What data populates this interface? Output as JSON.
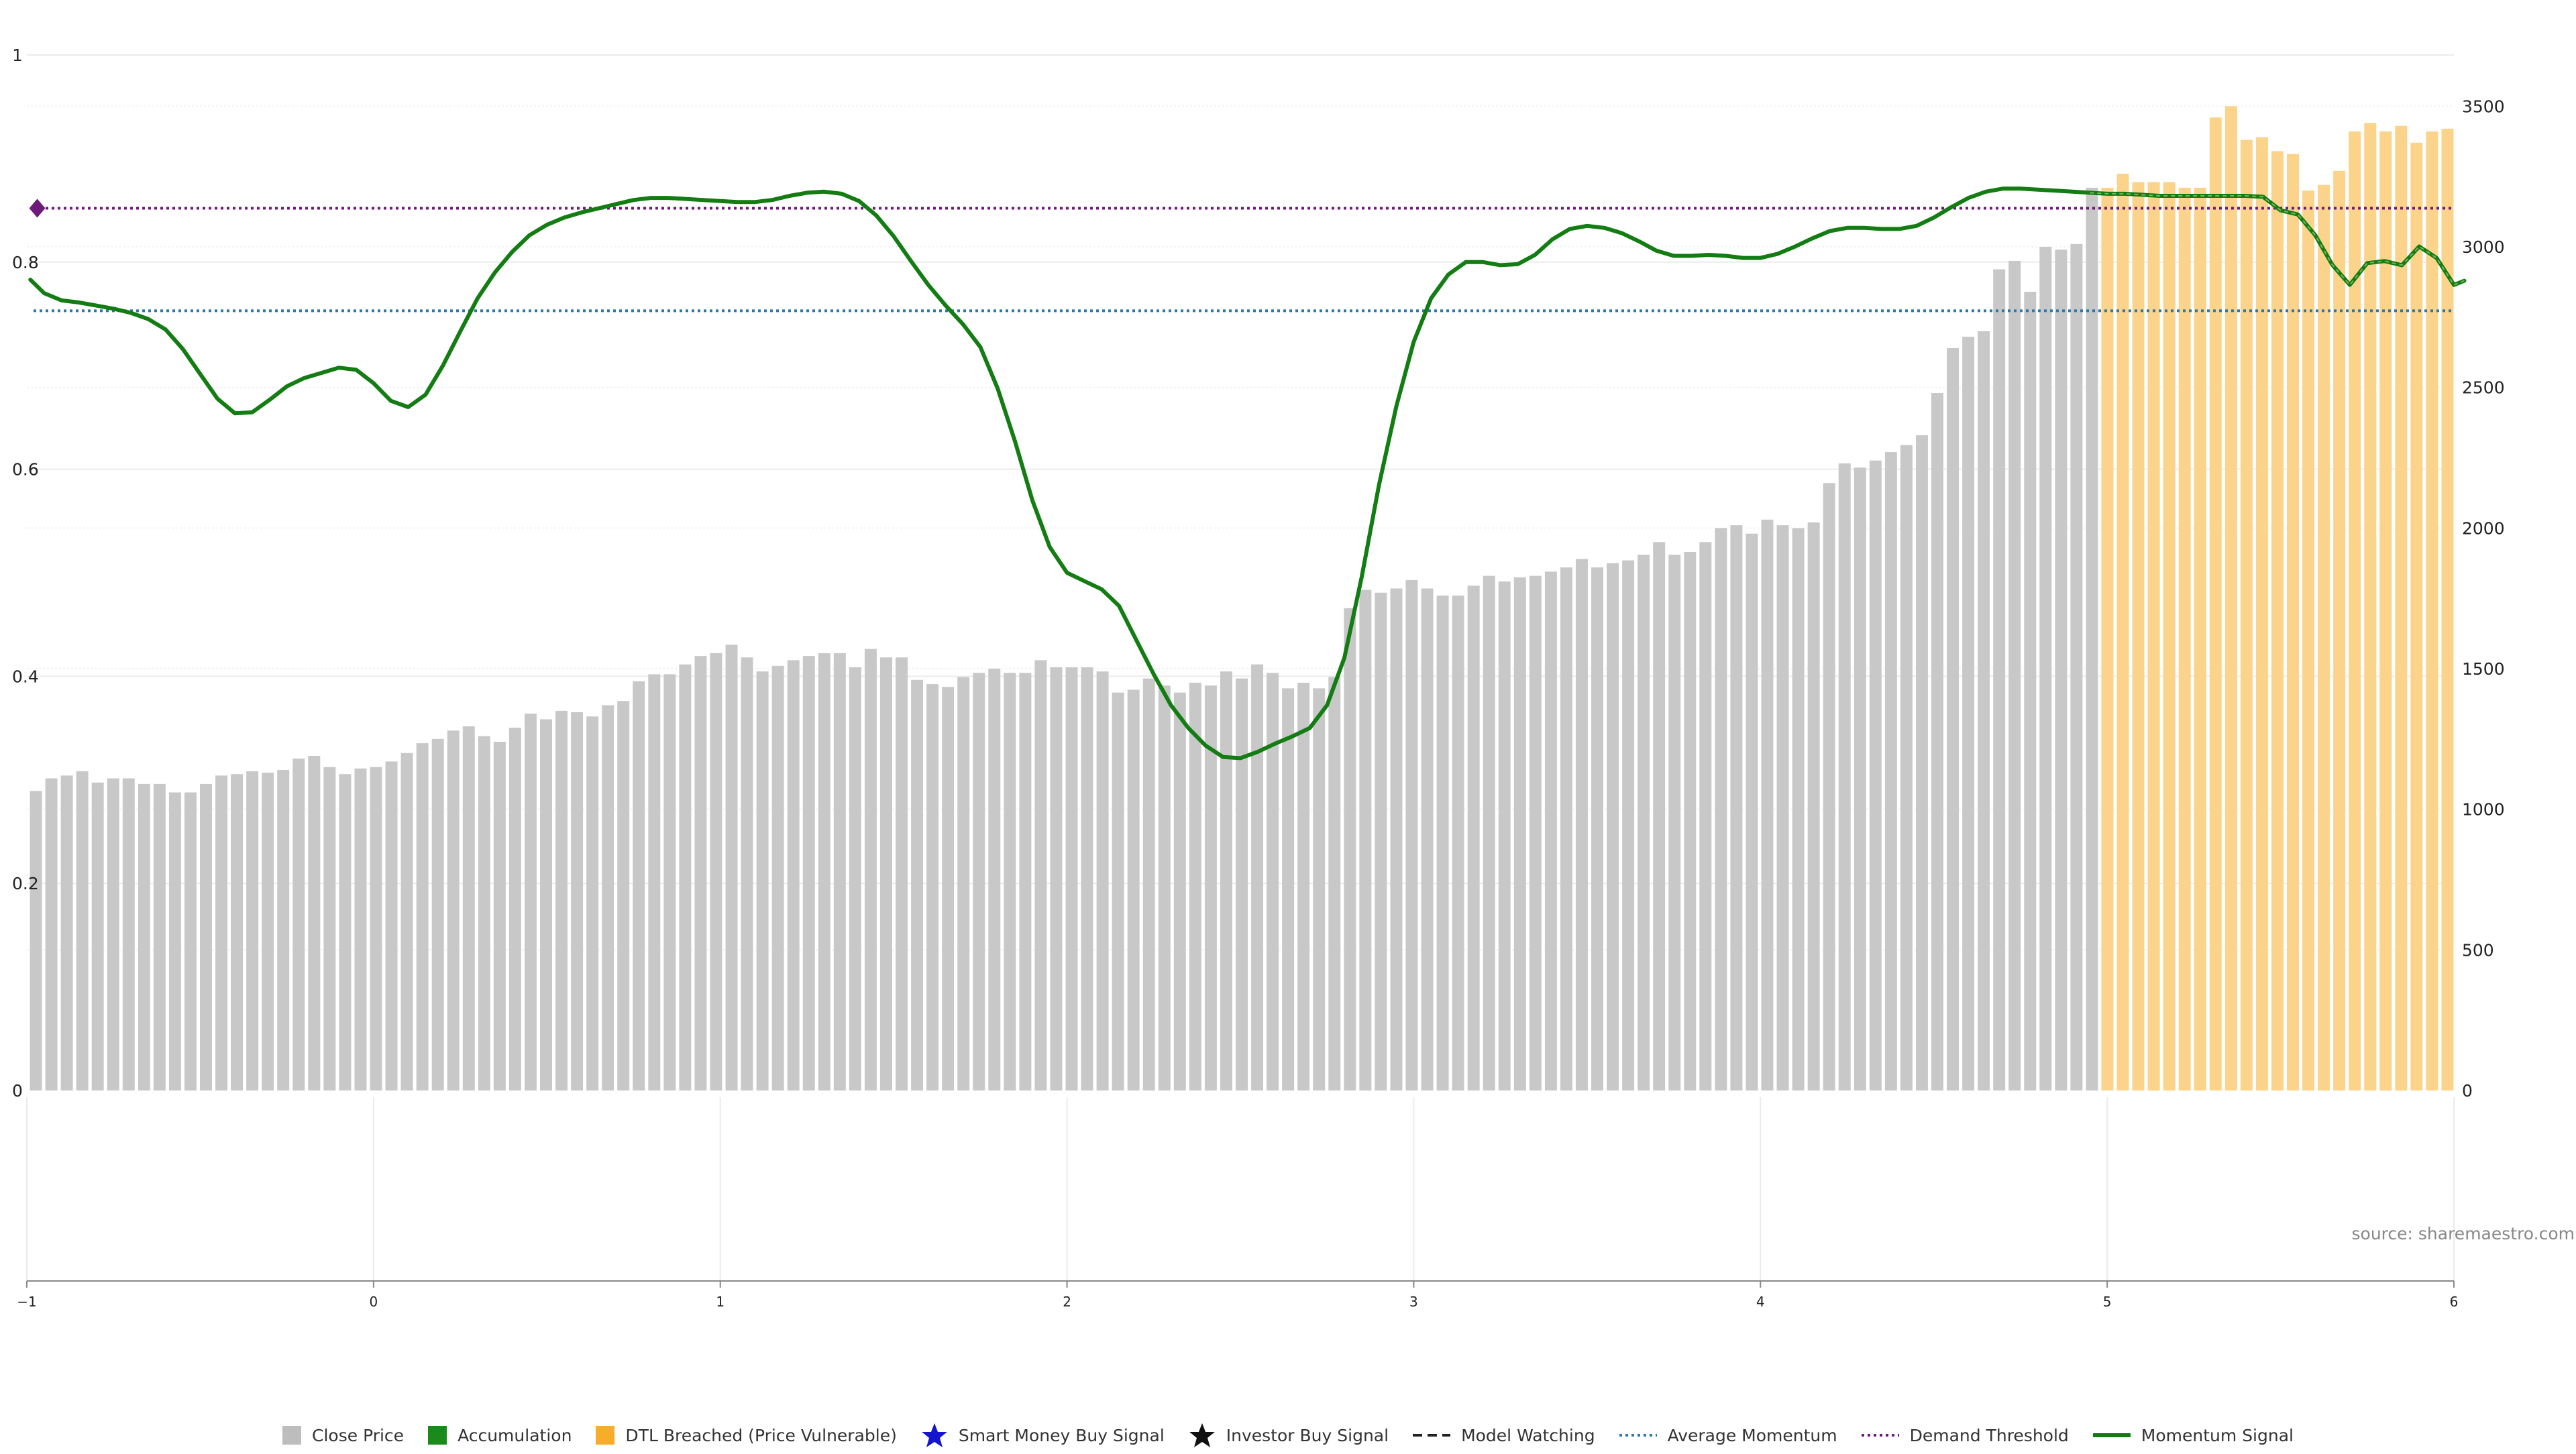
{
  "chart_data": {
    "type": "bar+line",
    "source_label": "source: sharemaestro.com",
    "left_axis": {
      "ticks": [
        0,
        0.2,
        0.4,
        0.6,
        0.8,
        1
      ],
      "tick_labels": [
        "0",
        "0.2",
        "0.4",
        "0.6",
        "0.8",
        "1"
      ],
      "ylim": [
        0,
        1
      ]
    },
    "right_axis": {
      "ticks": [
        0,
        500,
        1000,
        1500,
        2000,
        2500,
        3000,
        3500
      ],
      "tick_labels": [
        "0",
        "500",
        "1000",
        "1500",
        "2000",
        "2500",
        "3000",
        "3500"
      ],
      "ylim": [
        0,
        3682
      ]
    },
    "x_axis": {
      "ticks": [
        -1,
        0,
        1,
        2,
        3,
        4,
        5,
        6
      ],
      "tick_labels": [
        "−1",
        "0",
        "1",
        "2",
        "3",
        "4",
        "5",
        "6"
      ],
      "xlim": [
        -1,
        6
      ]
    },
    "grid": true,
    "legend_position": "bottom",
    "colors": {
      "close_price": "#c8c8c8",
      "accumulation": "#1a8a1a",
      "dtl_breached": "#fbd38a",
      "momentum": "#137d13",
      "average_momentum": "#2a7aa8",
      "demand_threshold": "#6d1a7a",
      "grid": "#ebebeb"
    },
    "average_momentum": 0.753,
    "demand_threshold": 0.852,
    "close_price": [
      1065,
      1110,
      1120,
      1135,
      1095,
      1110,
      1110,
      1090,
      1090,
      1060,
      1060,
      1090,
      1120,
      1125,
      1135,
      1130,
      1140,
      1180,
      1190,
      1150,
      1125,
      1145,
      1150,
      1170,
      1200,
      1235,
      1250,
      1280,
      1295,
      1260,
      1240,
      1290,
      1340,
      1320,
      1350,
      1345,
      1330,
      1370,
      1385,
      1455,
      1480,
      1480,
      1515,
      1545,
      1555,
      1585,
      1540,
      1490,
      1510,
      1530,
      1545,
      1555,
      1555,
      1505,
      1570,
      1540,
      1540,
      1460,
      1445,
      1435,
      1470,
      1485,
      1500,
      1485,
      1485,
      1530,
      1505,
      1505,
      1505,
      1490,
      1415,
      1425,
      1465,
      1440,
      1415,
      1450,
      1440,
      1490,
      1465,
      1515,
      1485,
      1430,
      1450,
      1430,
      1470,
      1715,
      1780,
      1770,
      1785,
      1815,
      1785,
      1760,
      1760,
      1795,
      1830,
      1810,
      1825,
      1830,
      1845,
      1860,
      1890,
      1860,
      1875,
      1885,
      1905,
      1950,
      1905,
      1915,
      1950,
      2000,
      2010,
      1980,
      2030,
      2010,
      2000,
      2020,
      2160,
      2230,
      2215,
      2240,
      2270,
      2295,
      2330,
      2480,
      2640,
      2680,
      2700,
      2920,
      2950,
      2840,
      3000,
      2990,
      3010,
      3210,
      3210,
      3260,
      3230,
      3230,
      3230,
      3210,
      3210,
      3460,
      3500,
      3380,
      3390,
      3340,
      3330,
      3200,
      3220,
      3270,
      3410,
      3440,
      3410,
      3430,
      3370,
      3410,
      3420
    ],
    "dtl_breached_from_index": 134,
    "momentum_signal": [
      [
        -0.99,
        0.783
      ],
      [
        -0.95,
        0.77
      ],
      [
        -0.9,
        0.763
      ],
      [
        -0.85,
        0.761
      ],
      [
        -0.8,
        0.758
      ],
      [
        -0.75,
        0.755
      ],
      [
        -0.7,
        0.751
      ],
      [
        -0.65,
        0.745
      ],
      [
        -0.6,
        0.735
      ],
      [
        -0.55,
        0.716
      ],
      [
        -0.5,
        0.692
      ],
      [
        -0.45,
        0.668
      ],
      [
        -0.4,
        0.654
      ],
      [
        -0.35,
        0.655
      ],
      [
        -0.3,
        0.667
      ],
      [
        -0.25,
        0.68
      ],
      [
        -0.2,
        0.688
      ],
      [
        -0.15,
        0.693
      ],
      [
        -0.1,
        0.698
      ],
      [
        -0.05,
        0.696
      ],
      [
        0,
        0.683
      ],
      [
        0.05,
        0.666
      ],
      [
        0.1,
        0.66
      ],
      [
        0.15,
        0.672
      ],
      [
        0.2,
        0.7
      ],
      [
        0.25,
        0.733
      ],
      [
        0.3,
        0.765
      ],
      [
        0.35,
        0.79
      ],
      [
        0.4,
        0.81
      ],
      [
        0.45,
        0.826
      ],
      [
        0.5,
        0.836
      ],
      [
        0.55,
        0.843
      ],
      [
        0.6,
        0.848
      ],
      [
        0.65,
        0.852
      ],
      [
        0.7,
        0.856
      ],
      [
        0.75,
        0.86
      ],
      [
        0.8,
        0.862
      ],
      [
        0.85,
        0.862
      ],
      [
        0.9,
        0.861
      ],
      [
        0.95,
        0.86
      ],
      [
        1.0,
        0.859
      ],
      [
        1.05,
        0.858
      ],
      [
        1.1,
        0.858
      ],
      [
        1.15,
        0.86
      ],
      [
        1.2,
        0.864
      ],
      [
        1.25,
        0.867
      ],
      [
        1.3,
        0.868
      ],
      [
        1.35,
        0.866
      ],
      [
        1.4,
        0.859
      ],
      [
        1.45,
        0.845
      ],
      [
        1.5,
        0.825
      ],
      [
        1.55,
        0.801
      ],
      [
        1.6,
        0.778
      ],
      [
        1.65,
        0.758
      ],
      [
        1.7,
        0.74
      ],
      [
        1.75,
        0.718
      ],
      [
        1.8,
        0.678
      ],
      [
        1.85,
        0.627
      ],
      [
        1.9,
        0.57
      ],
      [
        1.95,
        0.525
      ],
      [
        2.0,
        0.5
      ],
      [
        2.05,
        0.492
      ],
      [
        2.1,
        0.484
      ],
      [
        2.15,
        0.468
      ],
      [
        2.2,
        0.435
      ],
      [
        2.25,
        0.402
      ],
      [
        2.3,
        0.372
      ],
      [
        2.35,
        0.35
      ],
      [
        2.4,
        0.333
      ],
      [
        2.45,
        0.322
      ],
      [
        2.5,
        0.321
      ],
      [
        2.55,
        0.327
      ],
      [
        2.6,
        0.335
      ],
      [
        2.65,
        0.342
      ],
      [
        2.7,
        0.35
      ],
      [
        2.75,
        0.372
      ],
      [
        2.8,
        0.418
      ],
      [
        2.85,
        0.496
      ],
      [
        2.9,
        0.585
      ],
      [
        2.95,
        0.661
      ],
      [
        3.0,
        0.723
      ],
      [
        3.05,
        0.765
      ],
      [
        3.1,
        0.788
      ],
      [
        3.15,
        0.8
      ],
      [
        3.2,
        0.8
      ],
      [
        3.25,
        0.797
      ],
      [
        3.3,
        0.798
      ],
      [
        3.35,
        0.807
      ],
      [
        3.4,
        0.822
      ],
      [
        3.45,
        0.832
      ],
      [
        3.5,
        0.835
      ],
      [
        3.55,
        0.833
      ],
      [
        3.6,
        0.828
      ],
      [
        3.65,
        0.82
      ],
      [
        3.7,
        0.811
      ],
      [
        3.75,
        0.806
      ],
      [
        3.8,
        0.806
      ],
      [
        3.85,
        0.807
      ],
      [
        3.9,
        0.806
      ],
      [
        3.95,
        0.804
      ],
      [
        4.0,
        0.804
      ],
      [
        4.05,
        0.808
      ],
      [
        4.1,
        0.815
      ],
      [
        4.15,
        0.823
      ],
      [
        4.2,
        0.83
      ],
      [
        4.25,
        0.833
      ],
      [
        4.3,
        0.833
      ],
      [
        4.35,
        0.832
      ],
      [
        4.4,
        0.832
      ],
      [
        4.45,
        0.835
      ],
      [
        4.5,
        0.843
      ],
      [
        4.55,
        0.853
      ],
      [
        4.6,
        0.862
      ],
      [
        4.65,
        0.868
      ],
      [
        4.7,
        0.871
      ],
      [
        4.75,
        0.871
      ],
      [
        4.8,
        0.87
      ],
      [
        4.85,
        0.869
      ],
      [
        4.9,
        0.868
      ],
      [
        4.95,
        0.867
      ],
      [
        5.0,
        0.866
      ],
      [
        5.05,
        0.866
      ],
      [
        5.1,
        0.865
      ],
      [
        5.15,
        0.864
      ],
      [
        5.2,
        0.864
      ],
      [
        5.25,
        0.864
      ],
      [
        5.3,
        0.864
      ],
      [
        5.35,
        0.864
      ],
      [
        5.4,
        0.864
      ],
      [
        5.45,
        0.863
      ],
      [
        5.5,
        0.85
      ],
      [
        5.55,
        0.846
      ],
      [
        5.6,
        0.826
      ],
      [
        5.65,
        0.797
      ],
      [
        5.7,
        0.778
      ],
      [
        5.75,
        0.799
      ],
      [
        5.8,
        0.801
      ],
      [
        5.85,
        0.797
      ],
      [
        5.9,
        0.815
      ],
      [
        5.95,
        0.804
      ],
      [
        6.0,
        0.778
      ],
      [
        6.03,
        0.782
      ]
    ],
    "momentum_dashed_from_x": 4.95,
    "demand_marker_x": -0.97
  },
  "legend": [
    {
      "label": "Close Price",
      "icon": "square",
      "color": "#bdbdbd"
    },
    {
      "label": "Accumulation",
      "icon": "square",
      "color": "#1a8a1a"
    },
    {
      "label": "DTL Breached (Price Vulnerable)",
      "icon": "square",
      "color": "#f7ad2a"
    },
    {
      "label": "Smart Money Buy Signal",
      "icon": "star",
      "color": "#1515d0"
    },
    {
      "label": "Investor Buy Signal",
      "icon": "star",
      "color": "#111111"
    },
    {
      "label": "Model Watching",
      "icon": "dashed-line",
      "color": "#222222"
    },
    {
      "label": "Average Momentum",
      "icon": "dotted-line",
      "color": "#2a7aa8"
    },
    {
      "label": "Demand Threshold",
      "icon": "dotted-line",
      "color": "#6d1a7a"
    },
    {
      "label": "Momentum Signal",
      "icon": "solid-line",
      "color": "#137d13"
    }
  ]
}
